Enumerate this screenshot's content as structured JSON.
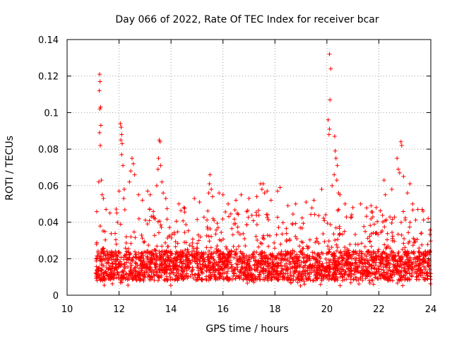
{
  "chart_data": {
    "type": "scatter",
    "title": "Day 066 of 2022, Rate Of TEC Index for receiver bcar",
    "xlabel": "GPS time / hours",
    "ylabel": "ROTI / TECUs",
    "xlim": [
      10,
      24
    ],
    "ylim": [
      0,
      0.14
    ],
    "x_ticks": [
      10,
      12,
      14,
      16,
      18,
      20,
      22,
      24
    ],
    "x_tick_labels": [
      "10",
      "12",
      "14",
      "16",
      "18",
      "20",
      "22",
      "24"
    ],
    "y_ticks": [
      0,
      0.02,
      0.04,
      0.06,
      0.08,
      0.1,
      0.12,
      0.14
    ],
    "y_tick_labels": [
      "0",
      "0.02",
      "0.04",
      "0.06",
      "0.08",
      "0.1",
      "0.12",
      "0.14"
    ],
    "grid": true,
    "marker": "plus",
    "marker_color": "#ff0000",
    "series": [
      {
        "name": "ROTI",
        "points": [
          [
            11.25,
            0.121
          ],
          [
            11.27,
            0.117
          ],
          [
            11.24,
            0.112
          ],
          [
            11.29,
            0.103
          ],
          [
            11.26,
            0.102
          ],
          [
            11.3,
            0.093
          ],
          [
            11.25,
            0.089
          ],
          [
            11.28,
            0.082
          ],
          [
            11.22,
            0.062
          ],
          [
            11.32,
            0.063
          ],
          [
            11.35,
            0.055
          ],
          [
            11.4,
            0.053
          ],
          [
            11.5,
            0.047
          ],
          [
            11.65,
            0.045
          ],
          [
            12.05,
            0.094
          ],
          [
            12.08,
            0.092
          ],
          [
            12.1,
            0.088
          ],
          [
            12.07,
            0.085
          ],
          [
            12.12,
            0.083
          ],
          [
            12.1,
            0.077
          ],
          [
            12.15,
            0.071
          ],
          [
            12.0,
            0.057
          ],
          [
            12.2,
            0.058
          ],
          [
            12.18,
            0.053
          ],
          [
            12.5,
            0.075
          ],
          [
            12.55,
            0.072
          ],
          [
            12.45,
            0.068
          ],
          [
            12.6,
            0.066
          ],
          [
            12.4,
            0.062
          ],
          [
            12.75,
            0.055
          ],
          [
            12.9,
            0.052
          ],
          [
            13.1,
            0.057
          ],
          [
            13.2,
            0.055
          ],
          [
            13.55,
            0.085
          ],
          [
            13.58,
            0.084
          ],
          [
            13.52,
            0.075
          ],
          [
            13.6,
            0.071
          ],
          [
            13.5,
            0.069
          ],
          [
            13.65,
            0.062
          ],
          [
            13.45,
            0.06
          ],
          [
            13.7,
            0.056
          ],
          [
            13.8,
            0.053
          ],
          [
            14.3,
            0.05
          ],
          [
            14.5,
            0.048
          ],
          [
            14.9,
            0.053
          ],
          [
            15.1,
            0.051
          ],
          [
            15.5,
            0.066
          ],
          [
            15.48,
            0.061
          ],
          [
            15.55,
            0.058
          ],
          [
            15.45,
            0.056
          ],
          [
            15.6,
            0.054
          ],
          [
            15.85,
            0.056
          ],
          [
            16.0,
            0.055
          ],
          [
            16.2,
            0.05
          ],
          [
            16.5,
            0.052
          ],
          [
            16.7,
            0.055
          ],
          [
            17.0,
            0.053
          ],
          [
            17.3,
            0.054
          ],
          [
            17.45,
            0.061
          ],
          [
            17.55,
            0.061
          ],
          [
            17.5,
            0.058
          ],
          [
            17.6,
            0.056
          ],
          [
            17.7,
            0.057
          ],
          [
            17.85,
            0.052
          ],
          [
            18.1,
            0.057
          ],
          [
            18.2,
            0.059
          ],
          [
            18.5,
            0.049
          ],
          [
            18.8,
            0.05
          ],
          [
            19.2,
            0.051
          ],
          [
            19.5,
            0.052
          ],
          [
            19.8,
            0.058
          ],
          [
            20.1,
            0.132
          ],
          [
            20.15,
            0.124
          ],
          [
            20.12,
            0.107
          ],
          [
            20.05,
            0.096
          ],
          [
            20.1,
            0.091
          ],
          [
            20.08,
            0.088
          ],
          [
            20.3,
            0.087
          ],
          [
            20.32,
            0.079
          ],
          [
            20.35,
            0.075
          ],
          [
            20.4,
            0.071
          ],
          [
            20.28,
            0.066
          ],
          [
            20.38,
            0.063
          ],
          [
            20.2,
            0.06
          ],
          [
            20.45,
            0.056
          ],
          [
            20.5,
            0.055
          ],
          [
            20.7,
            0.05
          ],
          [
            21.0,
            0.048
          ],
          [
            21.3,
            0.05
          ],
          [
            21.7,
            0.049
          ],
          [
            21.9,
            0.048
          ],
          [
            22.2,
            0.063
          ],
          [
            22.25,
            0.055
          ],
          [
            22.5,
            0.058
          ],
          [
            22.7,
            0.075
          ],
          [
            22.75,
            0.069
          ],
          [
            22.85,
            0.084
          ],
          [
            22.88,
            0.082
          ],
          [
            22.8,
            0.067
          ],
          [
            22.95,
            0.065
          ],
          [
            23.1,
            0.056
          ],
          [
            23.2,
            0.061
          ],
          [
            23.3,
            0.05
          ],
          [
            23.5,
            0.047
          ],
          [
            23.7,
            0.046
          ],
          [
            23.9,
            0.042
          ]
        ],
        "dense_band": {
          "x_start": 11.1,
          "x_end": 24.0,
          "y_low": 0.008,
          "y_high": 0.035,
          "occasional_max": 0.048,
          "min_value": 0.005
        }
      }
    ]
  }
}
